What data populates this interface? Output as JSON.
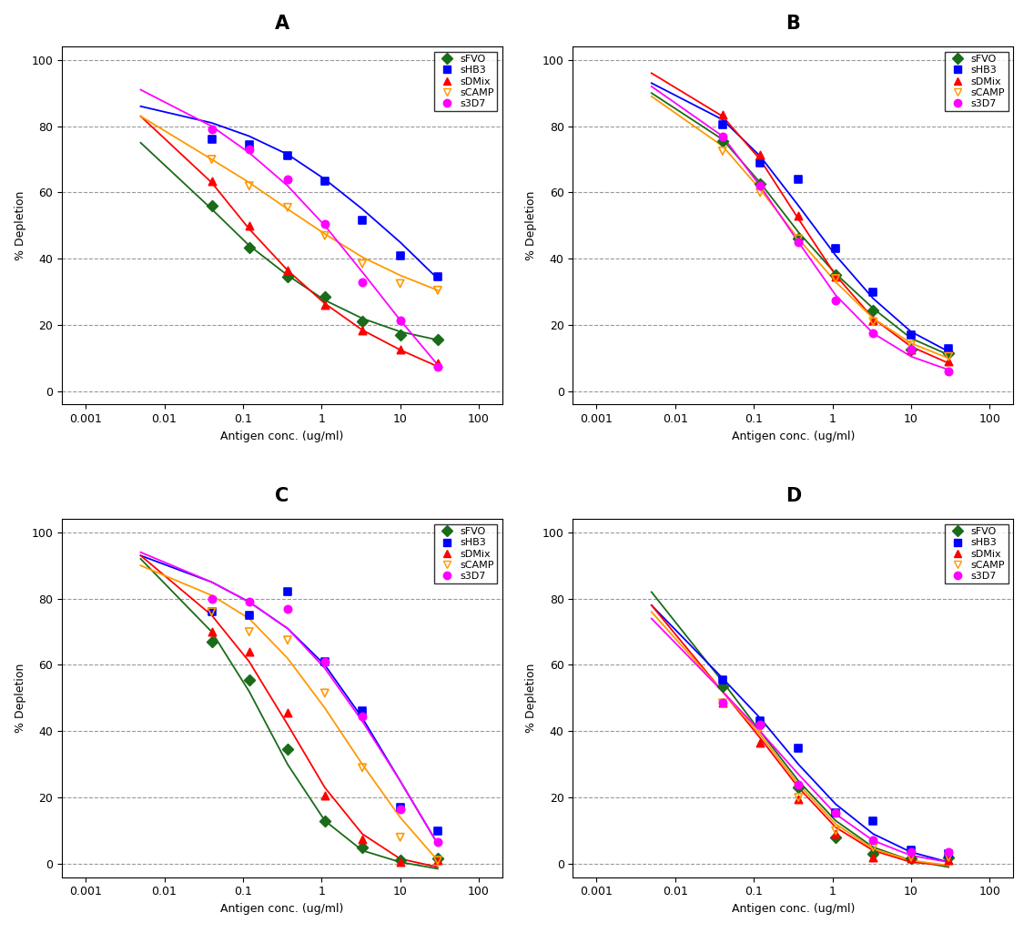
{
  "chart_data": [
    {
      "type": "scatter",
      "title": "A",
      "x_label": "Antigen conc. (ug/ml)",
      "y_label": "% Depletion",
      "log": "x",
      "grid": "y",
      "legend": "upper right",
      "xlim": [
        0.0005,
        200
      ],
      "xticks": [
        0.001,
        0.01,
        0.1,
        1,
        10,
        100
      ],
      "ylim": [
        -4,
        104
      ],
      "yticks": [
        0,
        20,
        40,
        60,
        80,
        100
      ],
      "x": [
        0.04,
        0.12,
        0.37,
        1.1,
        3.3,
        10,
        30
      ],
      "fit_x": [
        0.005,
        0.04,
        0.12,
        0.37,
        1.1,
        3.3,
        10,
        30
      ],
      "series": [
        {
          "name": "sFVO",
          "color": "#1a6b1a",
          "marker": "diamond",
          "values": [
            56,
            43.5,
            34.5,
            28.5,
            21,
            17,
            15.5
          ],
          "fit": [
            75,
            55,
            44,
            35,
            27.5,
            22,
            18,
            15.5
          ]
        },
        {
          "name": "sHB3",
          "color": "#0000ff",
          "marker": "square",
          "values": [
            76,
            74.5,
            71,
            63.5,
            51.5,
            41,
            34.5
          ],
          "fit": [
            86,
            81,
            77,
            71.5,
            64,
            55,
            45,
            34
          ]
        },
        {
          "name": "sDMix",
          "color": "#ff0000",
          "marker": "triangle",
          "values": [
            63.5,
            50,
            36.5,
            26,
            18.5,
            12.5,
            8.5
          ],
          "fit": [
            83,
            63,
            49,
            36.5,
            26.5,
            18.5,
            12.5,
            7.5
          ]
        },
        {
          "name": "sCAMP",
          "color": "#ff9900",
          "marker": "triangle_down_open",
          "values": [
            70,
            62,
            55.5,
            47,
            38.5,
            32.5,
            30.5
          ],
          "fit": [
            83,
            70,
            63,
            55,
            47.5,
            40.5,
            35,
            30.5
          ]
        },
        {
          "name": "s3D7",
          "color": "#ff00ff",
          "marker": "circle",
          "values": [
            79,
            73,
            64,
            50.5,
            33,
            21.5,
            7.5
          ],
          "fit": [
            91,
            80,
            72,
            62,
            50,
            36,
            21.5,
            8
          ]
        }
      ]
    },
    {
      "type": "scatter",
      "title": "B",
      "x_label": "Antigen conc. (ug/ml)",
      "y_label": "% Depletion",
      "log": "x",
      "grid": "y",
      "legend": "upper right",
      "xlim": [
        0.0005,
        200
      ],
      "xticks": [
        0.001,
        0.01,
        0.1,
        1,
        10,
        100
      ],
      "ylim": [
        -4,
        104
      ],
      "yticks": [
        0,
        20,
        40,
        60,
        80,
        100
      ],
      "x": [
        0.04,
        0.12,
        0.37,
        1.1,
        3.3,
        10,
        30
      ],
      "fit_x": [
        0.005,
        0.04,
        0.12,
        0.37,
        1.1,
        3.3,
        10,
        30
      ],
      "series": [
        {
          "name": "sFVO",
          "color": "#1a6b1a",
          "marker": "diamond",
          "values": [
            75.5,
            62.5,
            46,
            35,
            24.5,
            12.5,
            11.5
          ],
          "fit": [
            90,
            76,
            63,
            48,
            35.5,
            25,
            16,
            11
          ]
        },
        {
          "name": "sHB3",
          "color": "#0000ff",
          "marker": "square",
          "values": [
            80.5,
            69,
            64,
            43,
            30,
            17,
            13
          ],
          "fit": [
            93,
            82,
            71,
            56,
            41,
            28,
            18,
            12
          ]
        },
        {
          "name": "sDMix",
          "color": "#ff0000",
          "marker": "triangle",
          "values": [
            83.5,
            71.5,
            53,
            34.5,
            21.5,
            12.5,
            9
          ],
          "fit": [
            96,
            83,
            70,
            52,
            35,
            22,
            13.5,
            8.5
          ]
        },
        {
          "name": "sCAMP",
          "color": "#ff9900",
          "marker": "triangle_down_open",
          "values": [
            72.5,
            60,
            46,
            34,
            21,
            14,
            10.5
          ],
          "fit": [
            89,
            74,
            61,
            46,
            33,
            22,
            14.5,
            10
          ]
        },
        {
          "name": "s3D7",
          "color": "#ff00ff",
          "marker": "circle",
          "values": [
            77,
            62,
            45,
            27.5,
            17.5,
            12.5,
            6
          ],
          "fit": [
            92,
            77,
            62,
            45,
            29,
            17.5,
            10.5,
            6.5
          ]
        }
      ]
    },
    {
      "type": "scatter",
      "title": "C",
      "x_label": "Antigen conc. (ug/ml)",
      "y_label": "% Depletion",
      "log": "x",
      "grid": "y",
      "legend": "upper right",
      "xlim": [
        0.0005,
        200
      ],
      "xticks": [
        0.001,
        0.01,
        0.1,
        1,
        10,
        100
      ],
      "ylim": [
        -4,
        104
      ],
      "yticks": [
        0,
        20,
        40,
        60,
        80,
        100
      ],
      "x": [
        0.04,
        0.12,
        0.37,
        1.1,
        3.3,
        10,
        30
      ],
      "fit_x": [
        0.005,
        0.04,
        0.12,
        0.37,
        1.1,
        3.3,
        10,
        30
      ],
      "series": [
        {
          "name": "sFVO",
          "color": "#1a6b1a",
          "marker": "diamond",
          "values": [
            67,
            55.5,
            34.5,
            13,
            5,
            1,
            1.5
          ],
          "fit": [
            92,
            70,
            52,
            30,
            13,
            4,
            0.5,
            -1.5
          ]
        },
        {
          "name": "sHB3",
          "color": "#0000ff",
          "marker": "square",
          "values": [
            76,
            75,
            82,
            61,
            46,
            17,
            10
          ],
          "fit": [
            93,
            85,
            79,
            71,
            60,
            44,
            25,
            6
          ]
        },
        {
          "name": "sDMix",
          "color": "#ff0000",
          "marker": "triangle",
          "values": [
            70,
            64,
            45.5,
            20.5,
            7.5,
            0.5,
            1
          ],
          "fit": [
            93,
            75,
            61,
            42,
            23,
            9,
            1.5,
            -1
          ]
        },
        {
          "name": "sCAMP",
          "color": "#ff9900",
          "marker": "triangle_down_open",
          "values": [
            76,
            70,
            67.5,
            51.5,
            29,
            8,
            1
          ],
          "fit": [
            90,
            81,
            74,
            62,
            47,
            30,
            14,
            1
          ]
        },
        {
          "name": "s3D7",
          "color": "#ff00ff",
          "marker": "circle",
          "values": [
            80,
            79,
            77,
            61,
            44.5,
            16.5,
            6.5
          ],
          "fit": [
            94,
            85,
            79,
            71,
            59,
            43,
            25,
            6
          ]
        }
      ]
    },
    {
      "type": "scatter",
      "title": "D",
      "x_label": "Antigen conc. (ug/ml)",
      "y_label": "% Depletion",
      "log": "x",
      "grid": "y",
      "legend": "upper right",
      "xlim": [
        0.0005,
        200
      ],
      "xticks": [
        0.001,
        0.01,
        0.1,
        1,
        10,
        100
      ],
      "ylim": [
        -4,
        104
      ],
      "yticks": [
        0,
        20,
        40,
        60,
        80,
        100
      ],
      "x": [
        0.04,
        0.12,
        0.37,
        1.1,
        3.3,
        10,
        30
      ],
      "fit_x": [
        0.005,
        0.04,
        0.12,
        0.37,
        1.1,
        3.3,
        10,
        30
      ],
      "series": [
        {
          "name": "sFVO",
          "color": "#1a6b1a",
          "marker": "diamond",
          "values": [
            53.5,
            42,
            23,
            8,
            3,
            1.5,
            2
          ],
          "fit": [
            82,
            55,
            40,
            25,
            13,
            5,
            1,
            -1
          ]
        },
        {
          "name": "sHB3",
          "color": "#0000ff",
          "marker": "square",
          "values": [
            55.5,
            43,
            35,
            15.5,
            13,
            4,
            3
          ],
          "fit": [
            78,
            56,
            44,
            30,
            18,
            9,
            3.5,
            0.5
          ]
        },
        {
          "name": "sDMix",
          "color": "#ff0000",
          "marker": "triangle",
          "values": [
            48.5,
            36.5,
            19.5,
            9,
            2,
            1.5,
            1
          ],
          "fit": [
            78,
            52,
            38,
            23,
            11,
            4,
            0.5,
            -0.5
          ]
        },
        {
          "name": "sCAMP",
          "color": "#ff9900",
          "marker": "triangle_down_open",
          "values": [
            48.5,
            41,
            20,
            10,
            5,
            2,
            2
          ],
          "fit": [
            76,
            52,
            39,
            24,
            12,
            4.5,
            1,
            -0.5
          ]
        },
        {
          "name": "s3D7",
          "color": "#ff00ff",
          "marker": "circle",
          "values": [
            48.5,
            42,
            24,
            15.5,
            7,
            3.5,
            3.5
          ],
          "fit": [
            74,
            52,
            40,
            27,
            15,
            7,
            2.5,
            0.5
          ]
        }
      ]
    }
  ]
}
